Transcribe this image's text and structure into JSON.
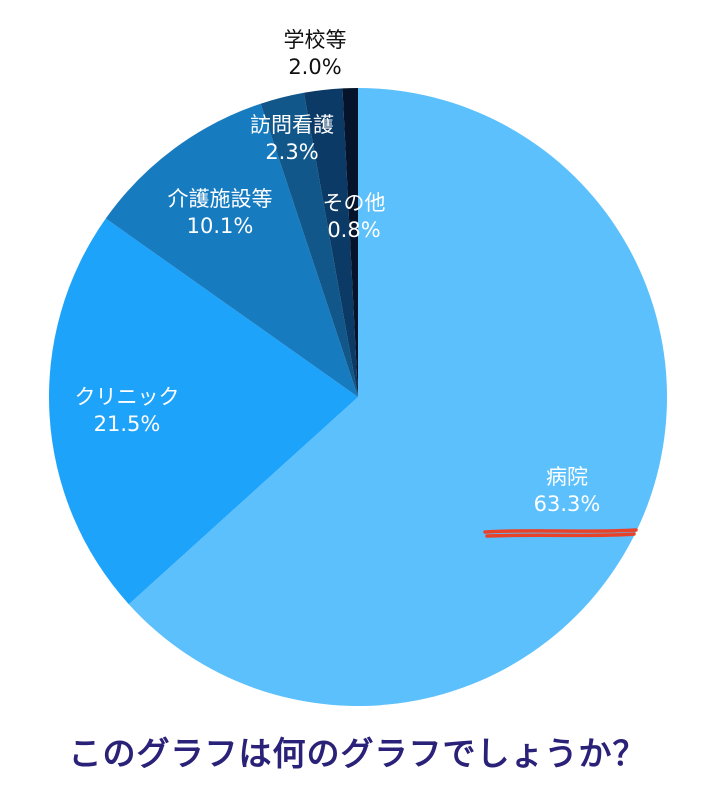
{
  "chart_data": {
    "type": "pie",
    "slices": [
      {
        "label": "病院",
        "value": 63.3,
        "display": "63.3%",
        "color": "#5bc0fb",
        "text_color": "#ffffff"
      },
      {
        "label": "クリニック",
        "value": 21.5,
        "display": "21.5%",
        "color": "#1ea3fb",
        "text_color": "#ffffff"
      },
      {
        "label": "介護施設等",
        "value": 10.1,
        "display": "10.1%",
        "color": "#177bc0",
        "text_color": "#ffffff"
      },
      {
        "label": "訪問看護",
        "value": 2.3,
        "display": "2.3%",
        "color": "#12578a",
        "text_color": "#ffffff"
      },
      {
        "label": "学校等",
        "value": 2.0,
        "display": "2.0%",
        "color": "#0c3a66",
        "text_color": "#111111"
      },
      {
        "label": "その他",
        "value": 0.8,
        "display": "0.8%",
        "color": "#05142b",
        "text_color": "#ffffff"
      }
    ],
    "start_angle_deg": 0,
    "direction": "clockwise",
    "highlight": {
      "slice": "病院",
      "style": "red underline",
      "color": "#e8432a"
    }
  },
  "caption": {
    "text": "このグラフは何のグラフでしょうか？",
    "color": "#2a2178"
  }
}
